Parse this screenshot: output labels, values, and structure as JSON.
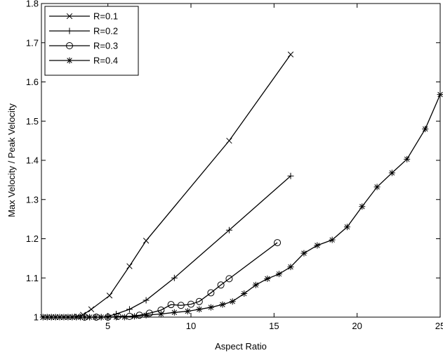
{
  "chart_data": {
    "type": "line",
    "title": "",
    "xlabel": "Aspect Ratio",
    "ylabel": "Max Velocity / Peak Velocity",
    "xlim": [
      1,
      25
    ],
    "ylim": [
      1,
      1.8
    ],
    "xticks": [
      5,
      10,
      15,
      20,
      25
    ],
    "yticks": [
      1,
      1.1,
      1.2,
      1.3,
      1.4,
      1.5,
      1.6,
      1.7,
      1.8
    ],
    "xtick_labels": [
      "5",
      "10",
      "15",
      "20",
      "25"
    ],
    "ytick_labels": [
      "1",
      "1.1",
      "1.2",
      "1.3",
      "1.4",
      "1.5",
      "1.6",
      "1.7",
      "1.8"
    ],
    "grid": false,
    "legend_position": "top-left",
    "line_color": "#000000",
    "series": [
      {
        "name": "R=0.1",
        "marker": "x",
        "x": [
          1.1,
          1.35,
          1.6,
          1.85,
          2.1,
          2.35,
          2.6,
          2.85,
          3.15,
          3.5,
          4.0,
          5.1,
          6.3,
          7.3,
          12.3,
          16.0
        ],
        "y": [
          1.0,
          1.0,
          1.0,
          1.0,
          1.0,
          1.0,
          1.0,
          1.0,
          1.002,
          1.006,
          1.02,
          1.055,
          1.13,
          1.195,
          1.45,
          1.67
        ]
      },
      {
        "name": "R=0.2",
        "marker": "+",
        "x": [
          1.1,
          1.35,
          1.6,
          1.85,
          2.1,
          2.35,
          2.6,
          2.85,
          3.1,
          3.35,
          3.6,
          3.9,
          4.25,
          4.6,
          5.0,
          5.5,
          6.3,
          7.3,
          9.0,
          12.3,
          16.0
        ],
        "y": [
          1.0,
          1.0,
          1.0,
          1.0,
          1.0,
          1.0,
          1.0,
          1.0,
          1.0,
          1.0,
          1.0,
          1.0,
          1.0,
          1.0,
          1.002,
          1.008,
          1.02,
          1.043,
          1.1,
          1.222,
          1.36
        ]
      },
      {
        "name": "R=0.3",
        "marker": "o",
        "x": [
          3.6,
          4.3,
          5.0,
          5.6,
          6.3,
          6.9,
          7.5,
          8.2,
          8.8,
          9.4,
          10.0,
          10.5,
          11.2,
          11.8,
          12.3,
          15.2
        ],
        "y": [
          1.0,
          1.0,
          1.0,
          1.002,
          1.002,
          1.005,
          1.01,
          1.018,
          1.032,
          1.03,
          1.033,
          1.04,
          1.062,
          1.082,
          1.098,
          1.19
        ]
      },
      {
        "name": "R=0.4",
        "marker": "*",
        "x": [
          1.1,
          1.35,
          1.6,
          1.85,
          2.1,
          2.35,
          2.6,
          2.85,
          3.1,
          3.35,
          3.6,
          3.9,
          4.25,
          4.6,
          5.0,
          5.5,
          6.0,
          6.6,
          7.3,
          8.2,
          9.0,
          9.8,
          10.5,
          11.2,
          11.9,
          12.5,
          13.2,
          13.9,
          14.6,
          15.3,
          16.0,
          16.8,
          17.6,
          18.5,
          19.4,
          20.3,
          21.2,
          22.1,
          23.0,
          24.1,
          25.0
        ],
        "y": [
          1.0,
          1.0,
          1.0,
          1.0,
          1.0,
          1.0,
          1.0,
          1.0,
          1.0,
          1.0,
          1.0,
          1.0,
          1.0,
          1.0,
          1.0,
          1.0,
          1.0,
          1.002,
          1.005,
          1.008,
          1.012,
          1.015,
          1.02,
          1.025,
          1.032,
          1.04,
          1.06,
          1.082,
          1.098,
          1.11,
          1.128,
          1.163,
          1.183,
          1.197,
          1.23,
          1.282,
          1.332,
          1.368,
          1.403,
          1.48,
          1.568
        ]
      }
    ]
  }
}
